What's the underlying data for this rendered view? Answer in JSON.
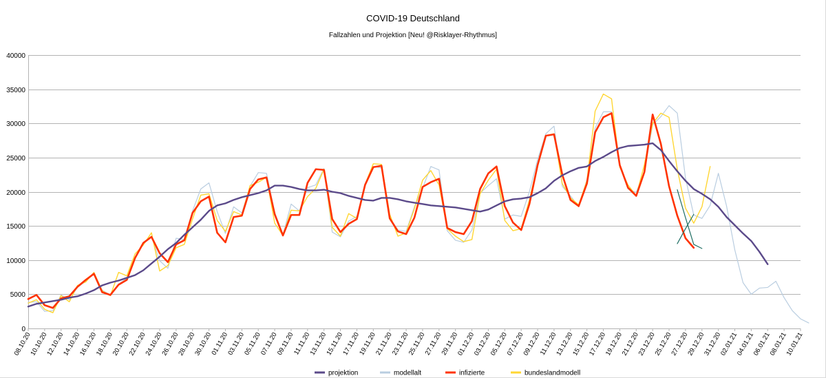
{
  "chart_data": {
    "type": "line",
    "title": "COVID-19 Deutschland",
    "subtitle": "Fallzahlen und Projektion [Neu! @Risklayer-Rhythmus]",
    "xlabel": "",
    "ylabel": "",
    "ylim": [
      0,
      40000
    ],
    "yticks": [
      0,
      5000,
      10000,
      15000,
      20000,
      25000,
      30000,
      35000,
      40000
    ],
    "grid": true,
    "legend_position": "bottom",
    "x_dates": [
      "08.10.20",
      "09.10.20",
      "10.10.20",
      "11.10.20",
      "12.10.20",
      "13.10.20",
      "14.10.20",
      "15.10.20",
      "16.10.20",
      "17.10.20",
      "18.10.20",
      "19.10.20",
      "20.10.20",
      "21.10.20",
      "22.10.20",
      "23.10.20",
      "24.10.20",
      "25.10.20",
      "26.10.20",
      "27.10.20",
      "28.10.20",
      "29.10.20",
      "30.10.20",
      "31.10.20",
      "01.11.20",
      "02.11.20",
      "03.11.20",
      "04.11.20",
      "05.11.20",
      "06.11.20",
      "07.11.20",
      "08.11.20",
      "09.11.20",
      "10.11.20",
      "11.11.20",
      "12.11.20",
      "13.11.20",
      "14.11.20",
      "15.11.20",
      "16.11.20",
      "17.11.20",
      "18.11.20",
      "19.11.20",
      "20.11.20",
      "21.11.20",
      "22.11.20",
      "23.11.20",
      "24.11.20",
      "25.11.20",
      "26.11.20",
      "27.11.20",
      "28.11.20",
      "29.11.20",
      "30.11.20",
      "01.12.20",
      "02.12.20",
      "03.12.20",
      "04.12.20",
      "05.12.20",
      "06.12.20",
      "07.12.20",
      "08.12.20",
      "09.12.20",
      "10.12.20",
      "11.12.20",
      "12.12.20",
      "13.12.20",
      "14.12.20",
      "15.12.20",
      "16.12.20",
      "17.12.20",
      "18.12.20",
      "19.12.20",
      "20.12.20",
      "21.12.20",
      "22.12.20",
      "23.12.20",
      "24.12.20",
      "25.12.20",
      "26.12.20",
      "27.12.20",
      "28.12.20",
      "29.12.20",
      "30.12.20",
      "31.12.20",
      "01.01.21",
      "02.01.21",
      "03.01.21",
      "04.01.21",
      "05.01.21",
      "06.01.21",
      "07.01.21",
      "08.01.21",
      "09.01.21",
      "10.01.21"
    ],
    "x_tick_labels": [
      "08.10.20",
      "10.10.20",
      "12.10.20",
      "14.10.20",
      "16.10.20",
      "18.10.20",
      "20.10.20",
      "22.10.20",
      "24.10.20",
      "26.10.20",
      "28.10.20",
      "30.10.20",
      "01.11.20",
      "03.11.20",
      "05.11.20",
      "07.11.20",
      "09.11.20",
      "11.11.20",
      "13.11.20",
      "15.11.20",
      "17.11.20",
      "19.11.20",
      "21.11.20",
      "23.11.20",
      "25.11.20",
      "27.11.20",
      "29.11.20",
      "01.12.20",
      "03.12.20",
      "05.12.20",
      "07.12.20",
      "09.12.20",
      "11.12.20",
      "13.12.20",
      "15.12.20",
      "17.12.20",
      "19.12.20",
      "21.12.20",
      "23.12.20",
      "25.12.20",
      "27.12.20",
      "29.12.20",
      "31.12.20",
      "02.01.21",
      "04.01.21",
      "06.01.21",
      "08.01.21",
      "10.01.21"
    ],
    "series": [
      {
        "name": "projektion",
        "color": "#5b4a8a",
        "width": 2.4,
        "start_index": 0,
        "values": [
          3200,
          3600,
          3800,
          4000,
          4200,
          4500,
          4700,
          5100,
          5600,
          6300,
          6700,
          7000,
          7400,
          7800,
          8500,
          9500,
          10500,
          11600,
          12500,
          13700,
          14800,
          15900,
          17200,
          18000,
          18300,
          18800,
          19200,
          19500,
          19800,
          20200,
          20900,
          20900,
          20700,
          20400,
          20200,
          20200,
          20300,
          20000,
          19800,
          19400,
          19100,
          18800,
          18700,
          19100,
          19100,
          18900,
          18600,
          18400,
          18200,
          18000,
          17900,
          17800,
          17700,
          17500,
          17300,
          17100,
          17400,
          18000,
          18600,
          18900,
          19000,
          19200,
          19800,
          20500,
          21600,
          22400,
          23000,
          23500,
          23700,
          24500,
          25100,
          25800,
          26400,
          26700,
          26800,
          26900,
          27100,
          26100,
          24500,
          23000,
          21600,
          20400,
          19700,
          18900,
          17800,
          16300,
          15100,
          13900,
          12800,
          11200,
          9400
        ]
      },
      {
        "name": "modellalt",
        "color": "#b9cde0",
        "width": 1.2,
        "start_index": 0,
        "values": [
          3800,
          3900,
          2500,
          2600,
          4900,
          4200,
          6000,
          6900,
          8200,
          5600,
          4900,
          6500,
          7300,
          10300,
          12600,
          13500,
          9900,
          8800,
          13200,
          13000,
          17200,
          20400,
          21300,
          17100,
          13900,
          17800,
          16900,
          20800,
          22800,
          22700,
          17000,
          13700,
          18200,
          17200,
          20600,
          21000,
          23400,
          14100,
          13400,
          15700,
          16400,
          21200,
          23700,
          23500,
          16200,
          14400,
          14200,
          17800,
          20500,
          23700,
          23200,
          14300,
          12900,
          12600,
          14400,
          19800,
          20900,
          21900,
          16000,
          16600,
          16400,
          20000,
          24700,
          28500,
          29600,
          20800,
          19400,
          17800,
          21800,
          29300,
          31700,
          31700,
          23800,
          20400,
          19900,
          23000,
          29800,
          31000,
          32600,
          31500,
          22000,
          16600,
          16100,
          18000,
          22700,
          17900,
          11500,
          6700,
          5000,
          5900,
          6000,
          6900,
          4500,
          2600,
          1400,
          800
        ]
      },
      {
        "name": "infizierte",
        "color": "#ff3300",
        "width": 2.6,
        "start_index": 0,
        "values": [
          4300,
          4900,
          3400,
          3000,
          4400,
          4700,
          6100,
          7100,
          8000,
          5300,
          4900,
          6400,
          7100,
          10300,
          12500,
          13400,
          11000,
          9700,
          12300,
          12900,
          16900,
          18600,
          19300,
          14000,
          12600,
          16300,
          16500,
          20400,
          21800,
          22100,
          16700,
          13600,
          16600,
          16600,
          21300,
          23300,
          23200,
          16000,
          14100,
          15300,
          16000,
          21000,
          23600,
          23800,
          16100,
          14200,
          13800,
          16200,
          20700,
          21400,
          21900,
          14700,
          14100,
          13800,
          15700,
          20400,
          22700,
          23700,
          17900,
          15500,
          14400,
          18200,
          23900,
          28200,
          28400,
          22500,
          18800,
          17900,
          21200,
          28700,
          30900,
          31500,
          23900,
          20600,
          19400,
          22900,
          31300,
          27000,
          20800,
          16500,
          13200,
          11800
        ]
      },
      {
        "name": "bundeslandmodell",
        "color": "#ffd633",
        "width": 1.4,
        "start_index": 0,
        "values": [
          3700,
          4200,
          2800,
          2300,
          4800,
          3900,
          6300,
          6800,
          8200,
          5500,
          4800,
          8200,
          7700,
          10900,
          12200,
          14000,
          8400,
          9200,
          11800,
          12300,
          16000,
          19500,
          19700,
          15800,
          14200,
          17100,
          16600,
          20900,
          21400,
          22100,
          15400,
          13600,
          17300,
          17200,
          19300,
          20500,
          23300,
          14800,
          13500,
          16800,
          16100,
          21100,
          24100,
          24000,
          16700,
          13500,
          14000,
          17500,
          21700,
          23100,
          21000,
          14600,
          13500,
          12700,
          13000,
          19700,
          21700,
          23300,
          15800,
          14300,
          14600,
          18800,
          24000,
          28200,
          28500,
          21200,
          19100,
          18100,
          21600,
          31800,
          34300,
          33600,
          23600,
          21000,
          19400,
          24000,
          30000,
          31500,
          30900,
          23300,
          17600,
          15400,
          17800,
          23700
        ]
      },
      {
        "name": "trend-line-a",
        "color": "#1f6e63",
        "width": 1.2,
        "start_index": 79,
        "values": [
          20300,
          16200,
          12300,
          11700
        ],
        "legend": false
      },
      {
        "name": "trend-line-b",
        "color": "#1f6e63",
        "width": 1.2,
        "start_index": 79,
        "values": [
          12400,
          14600,
          16700
        ],
        "legend": false
      }
    ]
  },
  "legend": [
    {
      "name": "projektion",
      "label": "projektion",
      "color": "#5b4a8a"
    },
    {
      "name": "modellalt",
      "label": "modellalt",
      "color": "#b9cde0"
    },
    {
      "name": "infizierte",
      "label": "infizierte",
      "color": "#ff3300"
    },
    {
      "name": "bundeslandmodell",
      "label": "bundeslandmodell",
      "color": "#ffd633"
    }
  ]
}
